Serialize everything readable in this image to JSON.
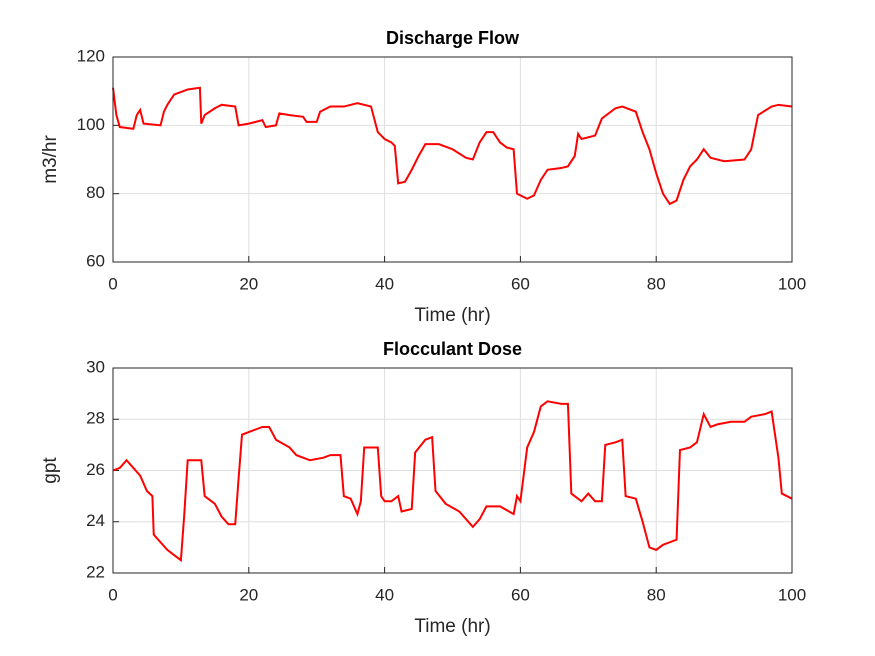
{
  "chart_data": [
    {
      "type": "line",
      "title": "Discharge Flow",
      "xlabel": "Time (hr)",
      "ylabel": "m3/hr",
      "xlim": [
        0,
        100
      ],
      "xticks": [
        0,
        20,
        40,
        60,
        80,
        100
      ],
      "ylim": [
        60,
        120
      ],
      "yticks": [
        60,
        80,
        100,
        120
      ],
      "grid": true,
      "color": "#ff0000",
      "x": [
        0,
        0.5,
        1,
        3,
        3.5,
        4,
        4.5,
        7,
        7.5,
        8,
        9,
        11,
        12.8,
        13,
        13.5,
        15,
        16,
        18,
        18.5,
        20,
        22,
        22.5,
        24,
        24.5,
        26,
        28,
        28.5,
        30,
        30.5,
        32,
        34,
        36,
        38,
        39,
        40,
        41,
        41.5,
        42,
        43,
        44,
        45,
        46,
        48,
        50,
        52,
        53,
        54,
        55,
        56,
        57,
        58,
        59,
        59.5,
        61,
        62,
        63,
        64,
        66,
        67,
        68,
        68.5,
        69,
        71,
        72,
        74,
        75,
        77,
        78,
        79,
        80,
        81,
        82,
        83,
        84,
        85,
        86,
        87,
        88,
        90,
        93,
        94,
        95,
        97,
        98,
        100
      ],
      "values": [
        111,
        103,
        99.5,
        99,
        103,
        104.5,
        100.5,
        100,
        104,
        106,
        109,
        110.5,
        111,
        100.5,
        103,
        105,
        106,
        105.5,
        100,
        100.5,
        101.5,
        99.5,
        100,
        103.5,
        103,
        102.5,
        101,
        101,
        104,
        105.5,
        105.5,
        106.5,
        105.5,
        98,
        96,
        95,
        94,
        83,
        83.5,
        87,
        91,
        94.5,
        94.5,
        93,
        90.5,
        90,
        95,
        98,
        98,
        95,
        93.5,
        93,
        80,
        78.5,
        79.5,
        84,
        87,
        87.5,
        88,
        91,
        97.5,
        96,
        97,
        102,
        105,
        105.5,
        104,
        98,
        93,
        86,
        80,
        77,
        78,
        84,
        88,
        90,
        93,
        90.5,
        89.5,
        90,
        93,
        103,
        105.5,
        106,
        105.5
      ]
    },
    {
      "type": "line",
      "title": "Flocculant Dose",
      "xlabel": "Time (hr)",
      "ylabel": "gpt",
      "xlim": [
        0,
        100
      ],
      "xticks": [
        0,
        20,
        40,
        60,
        80,
        100
      ],
      "ylim": [
        22,
        30
      ],
      "yticks": [
        22,
        24,
        26,
        28,
        30
      ],
      "grid": true,
      "color": "#ff0000",
      "x": [
        0,
        1,
        2,
        3,
        4,
        5,
        5.8,
        6,
        7,
        8,
        9,
        10,
        10.5,
        11,
        13,
        13.5,
        15,
        16,
        17,
        18,
        18.5,
        19,
        21,
        22,
        23,
        24,
        26,
        27,
        29,
        31,
        32,
        33.5,
        34,
        35,
        36,
        36.5,
        37,
        39,
        39.5,
        40,
        41,
        42,
        42.5,
        44,
        44.5,
        46,
        47,
        47.5,
        49,
        51,
        52,
        53,
        54,
        55,
        57,
        59,
        59.5,
        60,
        61,
        62,
        63,
        64,
        66,
        67,
        67.5,
        69,
        70,
        71,
        72,
        72.5,
        74,
        75,
        75.5,
        77,
        78,
        79,
        80,
        81,
        82,
        83,
        83.5,
        85,
        86,
        87,
        88,
        89,
        91,
        93,
        94,
        96,
        97,
        98,
        98.5,
        100
      ],
      "values": [
        26,
        26.1,
        26.4,
        26.1,
        25.8,
        25.2,
        25,
        23.5,
        23.2,
        22.9,
        22.7,
        22.5,
        24.3,
        26.4,
        26.4,
        25,
        24.7,
        24.2,
        23.9,
        23.9,
        25.7,
        27.4,
        27.6,
        27.7,
        27.7,
        27.2,
        26.9,
        26.6,
        26.4,
        26.5,
        26.6,
        26.6,
        25,
        24.9,
        24.3,
        24.8,
        26.9,
        26.9,
        25,
        24.8,
        24.8,
        25,
        24.4,
        24.5,
        26.7,
        27.2,
        27.3,
        25.2,
        24.7,
        24.4,
        24.1,
        23.8,
        24.1,
        24.6,
        24.6,
        24.3,
        25,
        24.8,
        26.9,
        27.5,
        28.5,
        28.7,
        28.6,
        28.6,
        25.1,
        24.8,
        25.1,
        24.8,
        24.8,
        27,
        27.1,
        27.2,
        25,
        24.9,
        24,
        23,
        22.9,
        23.1,
        23.2,
        23.3,
        26.8,
        26.9,
        27.1,
        28.2,
        27.7,
        27.8,
        27.9,
        27.9,
        28.1,
        28.2,
        28.3,
        26.5,
        25.1,
        24.9
      ]
    }
  ]
}
